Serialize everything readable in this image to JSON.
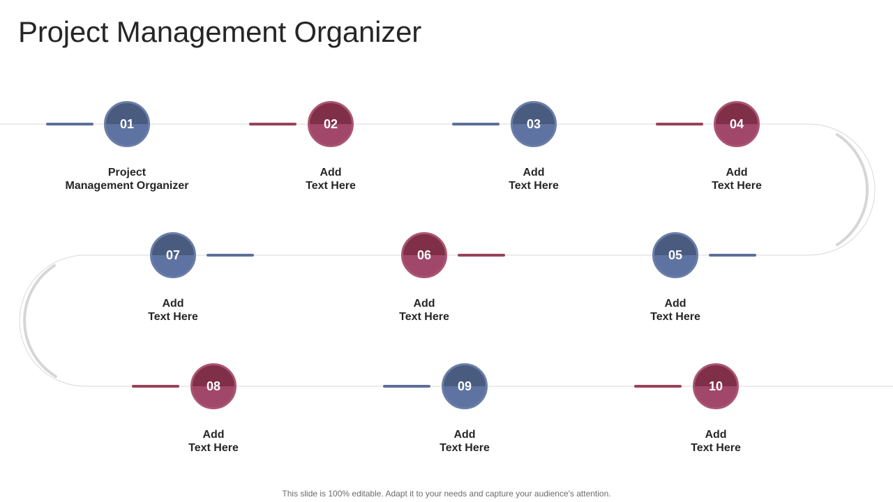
{
  "title": "Project Management Organizer",
  "footer": "This slide is 100% editable. Adapt it to your needs and capture your audience's attention.",
  "colors": {
    "blue": "#5e73a1",
    "red": "#a1476a",
    "track": "#d9d9d9"
  },
  "steps": [
    {
      "num": "01",
      "line1": "Project",
      "line2": "Management Organizer",
      "color": "blue"
    },
    {
      "num": "02",
      "line1": "Add",
      "line2": "Text Here",
      "color": "red"
    },
    {
      "num": "03",
      "line1": "Add",
      "line2": "Text Here",
      "color": "blue"
    },
    {
      "num": "04",
      "line1": "Add",
      "line2": "Text Here",
      "color": "red"
    },
    {
      "num": "05",
      "line1": "Add",
      "line2": "Text Here",
      "color": "blue"
    },
    {
      "num": "06",
      "line1": "Add",
      "line2": "Text Here",
      "color": "red"
    },
    {
      "num": "07",
      "line1": "Add",
      "line2": "Text Here",
      "color": "blue"
    },
    {
      "num": "08",
      "line1": "Add",
      "line2": "Text Here",
      "color": "red"
    },
    {
      "num": "09",
      "line1": "Add",
      "line2": "Text Here",
      "color": "blue"
    },
    {
      "num": "10",
      "line1": "Add",
      "line2": "Text Here",
      "color": "red"
    }
  ]
}
